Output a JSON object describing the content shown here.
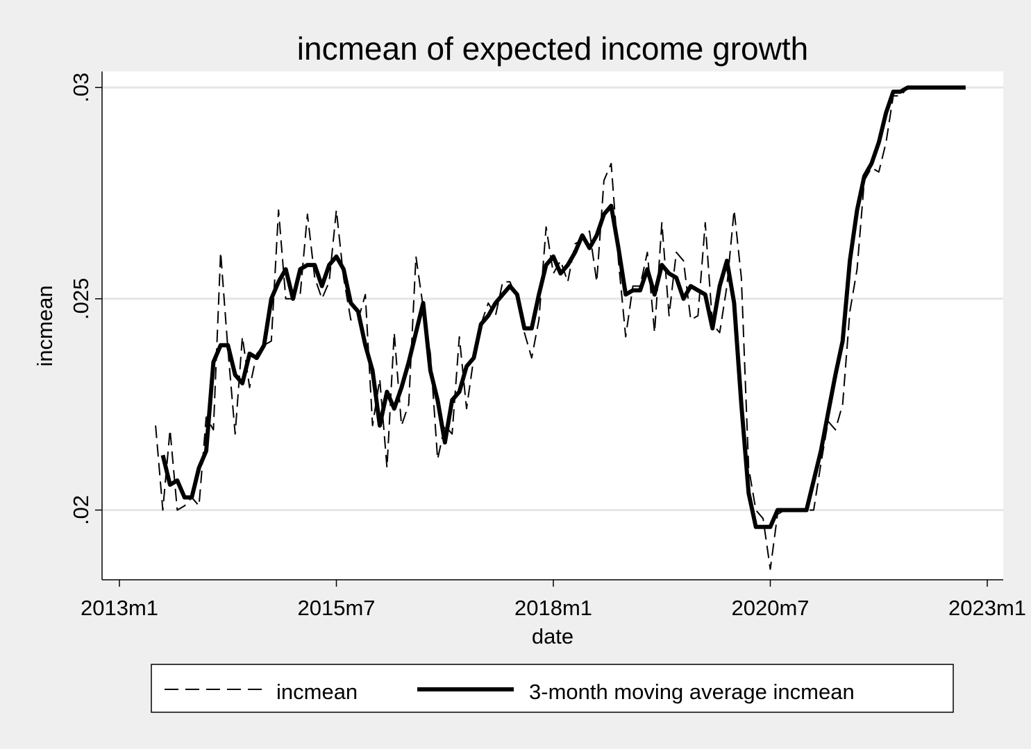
{
  "chart_data": {
    "type": "line",
    "title": "incmean of expected income growth",
    "xlabel": "date",
    "ylabel": "incmean",
    "x_ticks": [
      "2013m1",
      "2015m7",
      "2018m1",
      "2020m7",
      "2023m1"
    ],
    "y_ticks": [
      ".02",
      ".025",
      ".03"
    ],
    "xlim": [
      "2013-01",
      "2023-01"
    ],
    "ylim": [
      0.01835,
      0.03038
    ],
    "grid": true,
    "legend_position": "bottom",
    "x": [
      "2013-06",
      "2013-07",
      "2013-08",
      "2013-09",
      "2013-10",
      "2013-11",
      "2013-12",
      "2014-01",
      "2014-02",
      "2014-03",
      "2014-04",
      "2014-05",
      "2014-06",
      "2014-07",
      "2014-08",
      "2014-09",
      "2014-10",
      "2014-11",
      "2014-12",
      "2015-01",
      "2015-02",
      "2015-03",
      "2015-04",
      "2015-05",
      "2015-06",
      "2015-07",
      "2015-08",
      "2015-09",
      "2015-10",
      "2015-11",
      "2015-12",
      "2016-01",
      "2016-02",
      "2016-03",
      "2016-04",
      "2016-05",
      "2016-06",
      "2016-07",
      "2016-08",
      "2016-09",
      "2016-10",
      "2016-11",
      "2016-12",
      "2017-01",
      "2017-02",
      "2017-03",
      "2017-04",
      "2017-05",
      "2017-06",
      "2017-07",
      "2017-08",
      "2017-09",
      "2017-10",
      "2017-11",
      "2017-12",
      "2018-01",
      "2018-02",
      "2018-03",
      "2018-04",
      "2018-05",
      "2018-06",
      "2018-07",
      "2018-08",
      "2018-09",
      "2018-10",
      "2018-11",
      "2018-12",
      "2019-01",
      "2019-02",
      "2019-03",
      "2019-04",
      "2019-05",
      "2019-06",
      "2019-07",
      "2019-08",
      "2019-09",
      "2019-10",
      "2019-11",
      "2019-12",
      "2020-01",
      "2020-02",
      "2020-03",
      "2020-04",
      "2020-05",
      "2020-06",
      "2020-07",
      "2020-08",
      "2020-09",
      "2020-10",
      "2020-11",
      "2020-12",
      "2021-01",
      "2021-02",
      "2021-03",
      "2021-04",
      "2021-05",
      "2021-06",
      "2021-07",
      "2021-08",
      "2021-09",
      "2021-10",
      "2021-11",
      "2021-12",
      "2022-01",
      "2022-02",
      "2022-03",
      "2022-04",
      "2022-05",
      "2022-06",
      "2022-07",
      "2022-08",
      "2022-09",
      "2022-10"
    ],
    "series": [
      {
        "name": "incmean",
        "style": "dashed",
        "color": "#000000",
        "values": [
          0.022,
          0.02,
          0.0219,
          0.02,
          0.0201,
          0.0203,
          0.0201,
          0.0222,
          0.0219,
          0.0261,
          0.0238,
          0.0218,
          0.0241,
          0.0229,
          0.0237,
          0.0239,
          0.024,
          0.0271,
          0.025,
          0.025,
          0.0251,
          0.027,
          0.0255,
          0.025,
          0.0254,
          0.0271,
          0.0255,
          0.0245,
          0.0245,
          0.0251,
          0.022,
          0.0231,
          0.021,
          0.0242,
          0.022,
          0.0225,
          0.026,
          0.0248,
          0.0237,
          0.0212,
          0.022,
          0.0218,
          0.0241,
          0.0224,
          0.0236,
          0.0244,
          0.0249,
          0.0246,
          0.0254,
          0.0254,
          0.025,
          0.0242,
          0.0236,
          0.0245,
          0.0267,
          0.0256,
          0.0259,
          0.0254,
          0.0263,
          0.0264,
          0.0266,
          0.0254,
          0.0278,
          0.0282,
          0.0259,
          0.0241,
          0.0253,
          0.0253,
          0.0261,
          0.0242,
          0.0268,
          0.0246,
          0.0261,
          0.0259,
          0.0245,
          0.0246,
          0.0268,
          0.0244,
          0.0242,
          0.0253,
          0.0271,
          0.0255,
          0.021,
          0.02,
          0.0198,
          0.0186,
          0.0199,
          0.02,
          0.02,
          0.02,
          0.02,
          0.02,
          0.0211,
          0.0221,
          0.0219,
          0.0225,
          0.0247,
          0.0257,
          0.0278,
          0.0281,
          0.028,
          0.0287,
          0.0298,
          0.0298,
          0.03,
          0.03,
          0.03,
          0.03,
          0.03,
          0.03,
          0.03,
          0.03,
          0.03
        ]
      },
      {
        "name": "3-month moving average incmean",
        "style": "solid",
        "color": "#000000",
        "values": [
          null,
          0.0213,
          0.0206,
          0.0207,
          0.0203,
          0.0203,
          0.021,
          0.0214,
          0.0235,
          0.0239,
          0.0239,
          0.0232,
          0.023,
          0.0237,
          0.0236,
          0.0239,
          0.025,
          0.0254,
          0.0257,
          0.025,
          0.0257,
          0.0258,
          0.0258,
          0.0253,
          0.0258,
          0.026,
          0.0257,
          0.0249,
          0.0247,
          0.0239,
          0.0233,
          0.022,
          0.0228,
          0.0224,
          0.0229,
          0.0235,
          0.0242,
          0.0249,
          0.0233,
          0.0226,
          0.0216,
          0.0226,
          0.0228,
          0.0234,
          0.0236,
          0.0244,
          0.0246,
          0.0249,
          0.0251,
          0.0253,
          0.0251,
          0.0243,
          0.0243,
          0.0251,
          0.0258,
          0.026,
          0.0256,
          0.0258,
          0.0261,
          0.0265,
          0.0262,
          0.0265,
          0.027,
          0.0272,
          0.0262,
          0.0251,
          0.0252,
          0.0252,
          0.0257,
          0.0251,
          0.0258,
          0.0256,
          0.0255,
          0.025,
          0.0253,
          0.0252,
          0.0251,
          0.0243,
          0.0253,
          0.0259,
          0.0249,
          0.0225,
          0.0204,
          0.0196,
          0.0196,
          0.0196,
          0.02,
          0.02,
          0.02,
          0.02,
          0.02,
          0.0207,
          0.0214,
          0.0223,
          0.0232,
          0.024,
          0.0259,
          0.0271,
          0.0279,
          0.0282,
          0.0287,
          0.0294,
          0.0299,
          0.0299,
          0.03,
          0.03,
          0.03,
          0.03,
          0.03,
          0.03,
          0.03,
          0.03,
          0.03
        ]
      }
    ]
  }
}
